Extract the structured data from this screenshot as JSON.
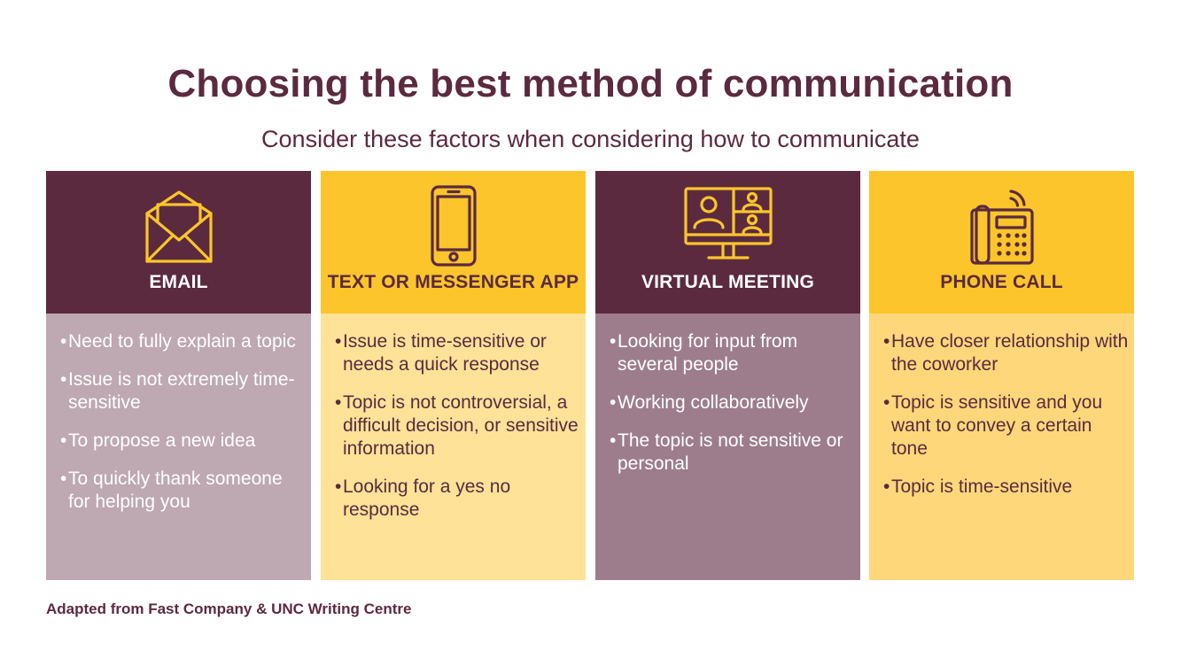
{
  "title": "Choosing the best method of communication",
  "subtitle": "Consider these factors when considering how to communicate",
  "colors": {
    "maroon": "#5b2a3f",
    "gold": "#fbc52b",
    "light_maroon": "#bea8b1",
    "mid_maroon": "#9d7d8c",
    "light_gold": "#fde298",
    "mid_gold": "#fdd77a"
  },
  "cards": [
    {
      "label": "EMAIL",
      "icon": "envelope-icon",
      "bullet": "•",
      "items": [
        "Need to fully explain a topic",
        "Issue is not extremely time-sensitive",
        "To propose a new idea",
        "To quickly thank someone for helping you"
      ]
    },
    {
      "label": "TEXT OR MESSENGER APP",
      "icon": "smartphone-icon",
      "bullet": "•",
      "items": [
        "Issue is time-sensitive or needs a quick response",
        "Topic is not controversial, a difficult decision, or sensitive information",
        "Looking for a yes no response"
      ]
    },
    {
      "label": "VIRTUAL MEETING",
      "icon": "video-conference-icon",
      "bullet": "•",
      "items": [
        "Looking for input from several people",
        "Working collaboratively",
        "The topic is not sensitive or personal"
      ]
    },
    {
      "label": "PHONE CALL",
      "icon": "desk-phone-icon",
      "bullet": "•",
      "items": [
        "Have closer relationship with the coworker",
        "Topic is sensitive and you want to convey a certain tone",
        "Topic is time-sensitive"
      ]
    }
  ],
  "footnote": "Adapted from Fast Company & UNC Writing Centre"
}
